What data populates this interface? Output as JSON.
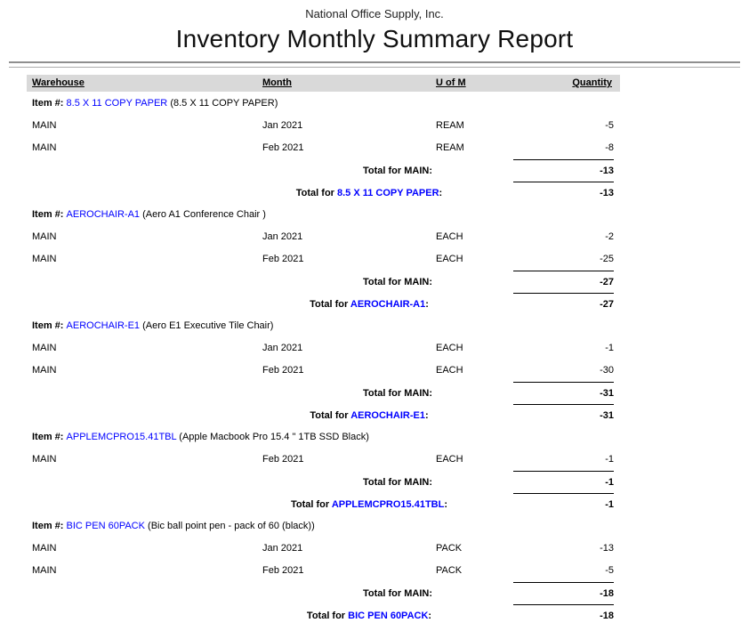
{
  "report": {
    "company": "National Office Supply, Inc.",
    "title": "Inventory Monthly Summary Report",
    "columns": {
      "warehouse": "Warehouse",
      "month": "Month",
      "uom": "U of M",
      "quantity": "Quantity"
    },
    "labels": {
      "item_prefix": "Item #:",
      "warehouse_total_label": "Total for MAIN:",
      "total_for_prefix": "Total for ",
      "colon": ":"
    },
    "colors": {
      "link": "#0000ff",
      "header_band": "#d9d9d9"
    },
    "sections": [
      {
        "item_code": "8.5 X 11 COPY PAPER",
        "item_description": "(8.5 X 11 COPY PAPER)",
        "rows": [
          {
            "warehouse": "MAIN",
            "month": "Jan 2021",
            "uom": "REAM",
            "quantity": "-5"
          },
          {
            "warehouse": "MAIN",
            "month": "Feb 2021",
            "uom": "REAM",
            "quantity": "-8"
          }
        ],
        "warehouse_total": "-13",
        "item_total": "-13"
      },
      {
        "item_code": "AEROCHAIR-A1",
        "item_description": "(Aero A1 Conference Chair )",
        "rows": [
          {
            "warehouse": "MAIN",
            "month": "Jan 2021",
            "uom": "EACH",
            "quantity": "-2"
          },
          {
            "warehouse": "MAIN",
            "month": "Feb 2021",
            "uom": "EACH",
            "quantity": "-25"
          }
        ],
        "warehouse_total": "-27",
        "item_total": "-27"
      },
      {
        "item_code": "AEROCHAIR-E1",
        "item_description": "(Aero E1 Executive Tile Chair)",
        "rows": [
          {
            "warehouse": "MAIN",
            "month": "Jan 2021",
            "uom": "EACH",
            "quantity": "-1"
          },
          {
            "warehouse": "MAIN",
            "month": "Feb 2021",
            "uom": "EACH",
            "quantity": "-30"
          }
        ],
        "warehouse_total": "-31",
        "item_total": "-31"
      },
      {
        "item_code": "APPLEMCPRO15.41TBL",
        "item_description": "(Apple Macbook Pro 15.4 \" 1TB SSD Black)",
        "rows": [
          {
            "warehouse": "MAIN",
            "month": "Feb 2021",
            "uom": "EACH",
            "quantity": "-1"
          }
        ],
        "warehouse_total": "-1",
        "item_total": "-1"
      },
      {
        "item_code": "BIC PEN 60PACK",
        "item_description": "(Bic ball point pen - pack of 60 (black))",
        "rows": [
          {
            "warehouse": "MAIN",
            "month": "Jan 2021",
            "uom": "PACK",
            "quantity": "-13"
          },
          {
            "warehouse": "MAIN",
            "month": "Feb 2021",
            "uom": "PACK",
            "quantity": "-5"
          }
        ],
        "warehouse_total": "-18",
        "item_total": "-18"
      }
    ]
  }
}
